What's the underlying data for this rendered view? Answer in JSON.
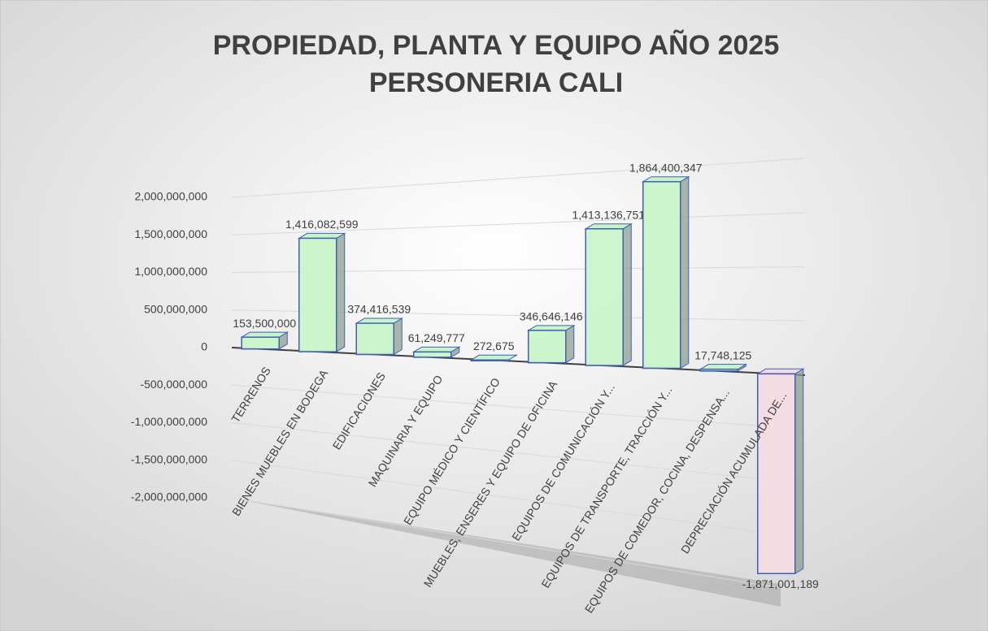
{
  "chart_data": {
    "type": "bar3d",
    "title": "PROPIEDAD, PLANTA Y EQUIPO AÑO 2025",
    "subtitle": "PERSONERIA CALI",
    "categories": [
      "TERRENOS",
      "BIENES MUEBLES EN BODEGA",
      "EDIFICACIONES",
      "MAQUINARIA Y EQUIPO",
      "EQUIPO MÉDICO Y CIENTÍFICO",
      "MUEBLES, ENSERES Y EQUIPO DE OFICINA",
      "EQUIPOS DE COMUNICACIÓN Y...",
      "EQUIPOS DE TRANSPORTE, TRACCIÓN Y...",
      "EQUIPOS DE COMEDOR, COCINA, DESPENSA...",
      "DEPRECIACIÓN ACUMULADA DE..."
    ],
    "values": [
      153500000,
      1416082599,
      374416539,
      61249777,
      272675,
      346646146,
      1413136751,
      1864400347,
      17748125,
      -1871001189
    ],
    "value_labels": [
      "153,500,000",
      "1,416,082,599",
      "374,416,539",
      "61,249,777",
      "272,675",
      "346,646,146",
      "1,413,136,751",
      "1,864,400,347",
      "17,748,125",
      "-1,871,001,189"
    ],
    "color": "#c8f5c8",
    "negative_color": "#f6d9e1",
    "edge_color": "#3f5fb8",
    "ylim": [
      -2000000000,
      2000000000
    ],
    "yticks": [
      {
        "value": -2000000000,
        "label": "-2,000,000,000"
      },
      {
        "value": -1500000000,
        "label": "-1,500,000,000"
      },
      {
        "value": -1000000000,
        "label": "-1,000,000,000"
      },
      {
        "value": -500000000,
        "label": "-500,000,000"
      },
      0,
      {
        "value": 500000000,
        "label": "500,000,000"
      },
      {
        "value": 1000000000,
        "label": "1,000,000,000"
      },
      {
        "value": 1500000000,
        "label": "1,500,000,000"
      },
      {
        "value": 2000000000,
        "label": "2,000,000,000"
      }
    ],
    "grid": true
  }
}
